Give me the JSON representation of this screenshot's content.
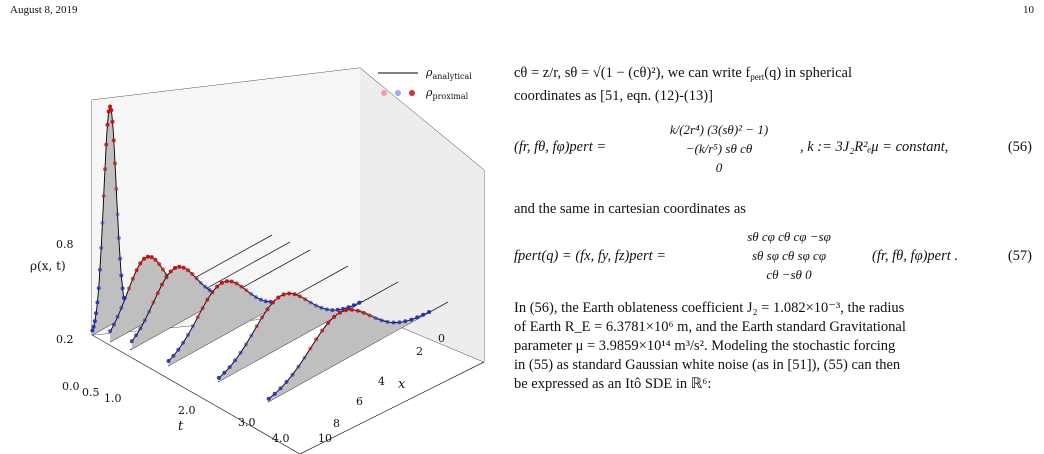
{
  "header": {
    "date": "August 8, 2019",
    "page_number": "10"
  },
  "figure": {
    "legend": [
      {
        "symbol": "ρ",
        "subscript": "analytical",
        "style": "line",
        "color": "#000000"
      },
      {
        "symbol": "ρ",
        "subscript": "proximal",
        "style": "dots",
        "colors": [
          "#f4a0a0",
          "#a0a8f0",
          "#e03030"
        ]
      }
    ],
    "ylabel": "ρ(x, t)",
    "xlabel": "x",
    "tlabel": "t",
    "rho_ticks": [
      "0.8",
      "0.2"
    ],
    "t_ticks": [
      "0.0",
      "0.5",
      "1.0",
      "2.0",
      "3.0",
      "4.0"
    ],
    "x_ticks": [
      "0",
      "2",
      "4",
      "6",
      "8",
      "10"
    ],
    "colors": {
      "analytical": "#000000",
      "fill": "#bfbfbf",
      "high_density": "#cc1010",
      "low_density": "#2030c0"
    }
  },
  "chart_data": {
    "type": "line",
    "title": "",
    "xlabel": "x",
    "ylabel": "ρ(x, t)",
    "zlabel": "t",
    "x_range": [
      0,
      10
    ],
    "t_ticks": [
      0.0,
      0.5,
      1.0,
      2.0,
      3.0,
      4.0
    ],
    "z_ticks": [
      0.2,
      0.8
    ],
    "series": [
      {
        "name": "ρanalytical",
        "t": 0.0,
        "peak_x": 1.0,
        "peak_rho": 1.15
      },
      {
        "name": "ρanalytical",
        "t": 0.5,
        "peak_x": 2.0,
        "peak_rho": 0.34
      },
      {
        "name": "ρanalytical",
        "t": 1.0,
        "peak_x": 2.5,
        "peak_rho": 0.3
      },
      {
        "name": "ρanalytical",
        "t": 2.0,
        "peak_x": 3.0,
        "peak_rho": 0.28
      },
      {
        "name": "ρanalytical",
        "t": 3.0,
        "peak_x": 3.5,
        "peak_rho": 0.27
      },
      {
        "name": "ρanalytical",
        "t": 4.0,
        "peak_x": 4.0,
        "peak_rho": 0.26
      }
    ]
  },
  "text": {
    "intro_line1": "cθ = z/r, sθ = √(1 − (cθ)²), we can write f",
    "intro_pert": "pert",
    "intro_q": "(q) in spherical",
    "intro_line2": "coordinates as [51, eqn. (12)-(13)]",
    "eq56_number": "(56)",
    "eq56_k": ", k := 3J₂R²ₑμ = constant,",
    "eq56_row1": "k/(2r⁴) (3(sθ)² − 1)",
    "eq56_row2": "−(k/r⁵) sθ cθ",
    "eq56_row3": "0",
    "eq56_lhs": "(fr, fθ, fφ)pert =",
    "mid_line": "and the same in cartesian coordinates as",
    "eq57_number": "(57)",
    "eq57_lhs": "fpert(q) = (fx, fy, fz)pert =",
    "eq57_matrix": [
      "sθ cφ   cθ cφ   −sφ",
      "sθ sφ   cθ sφ   cφ",
      "cθ   −sθ   0"
    ],
    "eq57_rhs": "(fr, fθ, fφ)pert .",
    "para2_l1": "In (56), the Earth oblateness coefficient J₂ = 1.082×10⁻³, the radius",
    "para2_l2": "of Earth R_E = 6.3781×10⁶ m, and the Earth standard Gravitational",
    "para2_l3": "parameter μ = 3.9859×10¹⁴ m³/s². Modeling the stochastic forcing",
    "para2_l4": "in (55) as standard Gaussian white noise (as in [51]), (55) can then",
    "para2_l5": "be expressed as an Itô SDE in ℝ⁶:"
  }
}
